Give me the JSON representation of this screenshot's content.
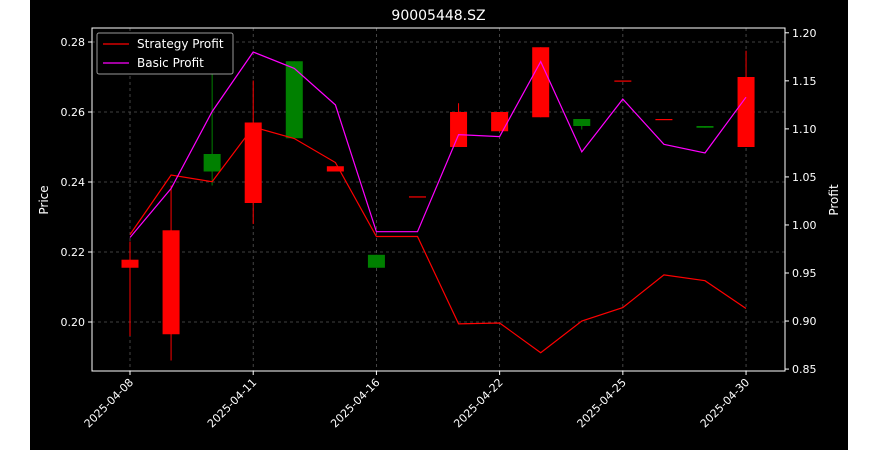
{
  "chart_data": {
    "type": "line",
    "title": "90005448.SZ",
    "xlabel": "",
    "ylabel": "Price",
    "y2label": "Profit",
    "x_tick_labels": [
      "2025-04-08",
      "2025-04-11",
      "2025-04-16",
      "2025-04-22",
      "2025-04-25",
      "2025-04-30"
    ],
    "x_tick_index": [
      0,
      3,
      6,
      9,
      12,
      15
    ],
    "ylim": [
      0.186,
      0.284
    ],
    "y_ticks": [
      0.2,
      0.22,
      0.24,
      0.26,
      0.28
    ],
    "y2lim": [
      0.848,
      1.205
    ],
    "y2_ticks": [
      0.85,
      0.9,
      0.95,
      1.0,
      1.05,
      1.1,
      1.15,
      1.2
    ],
    "grid": true,
    "legend_position": "top-left",
    "colors": {
      "background": "#000000",
      "up": "#ff0000",
      "down": "#008000",
      "strategy": "#ff0000",
      "basic": "#ff00ff",
      "grid": "#555555",
      "axes": "#ffffff"
    },
    "candles": [
      {
        "open": 0.2155,
        "close": 0.2178,
        "high": 0.223,
        "low": 0.196
      },
      {
        "open": 0.1965,
        "close": 0.2262,
        "high": 0.239,
        "low": 0.189
      },
      {
        "open": 0.248,
        "close": 0.243,
        "high": 0.282,
        "low": 0.239
      },
      {
        "open": 0.234,
        "close": 0.257,
        "high": 0.269,
        "low": 0.228
      },
      {
        "open": 0.2745,
        "close": 0.2525,
        "high": 0.2745,
        "low": 0.2525
      },
      {
        "open": 0.243,
        "close": 0.2445,
        "high": 0.2445,
        "low": 0.243
      },
      {
        "open": 0.2192,
        "close": 0.2155,
        "high": 0.2192,
        "low": 0.2155
      },
      {
        "open": 0.2359,
        "close": 0.2359,
        "high": 0.2359,
        "low": 0.2359
      },
      {
        "open": 0.25,
        "close": 0.26,
        "high": 0.2625,
        "low": 0.25
      },
      {
        "open": 0.2545,
        "close": 0.26,
        "high": 0.26,
        "low": 0.2545
      },
      {
        "open": 0.2585,
        "close": 0.2785,
        "high": 0.2785,
        "low": 0.2585
      },
      {
        "open": 0.258,
        "close": 0.256,
        "high": 0.258,
        "low": 0.255
      },
      {
        "open": 0.269,
        "close": 0.269,
        "high": 0.269,
        "low": 0.269
      },
      {
        "open": 0.258,
        "close": 0.258,
        "high": 0.258,
        "low": 0.258
      },
      {
        "open": 0.256,
        "close": 0.2555,
        "high": 0.256,
        "low": 0.2555
      },
      {
        "open": 0.25,
        "close": 0.27,
        "high": 0.2775,
        "low": 0.25
      }
    ],
    "series": [
      {
        "name": "Strategy Profit",
        "axis": "right",
        "values": [
          0.99,
          1.052,
          1.045,
          1.102,
          1.09,
          1.065,
          0.988,
          0.988,
          0.897,
          0.898,
          0.867,
          0.9,
          0.914,
          0.948,
          0.942,
          0.913
        ]
      },
      {
        "name": "Basic Profit",
        "axis": "right",
        "values": [
          0.987,
          1.038,
          1.118,
          1.18,
          1.163,
          1.125,
          0.993,
          0.993,
          1.094,
          1.092,
          1.17,
          1.076,
          1.131,
          1.084,
          1.075,
          1.133
        ]
      }
    ]
  }
}
